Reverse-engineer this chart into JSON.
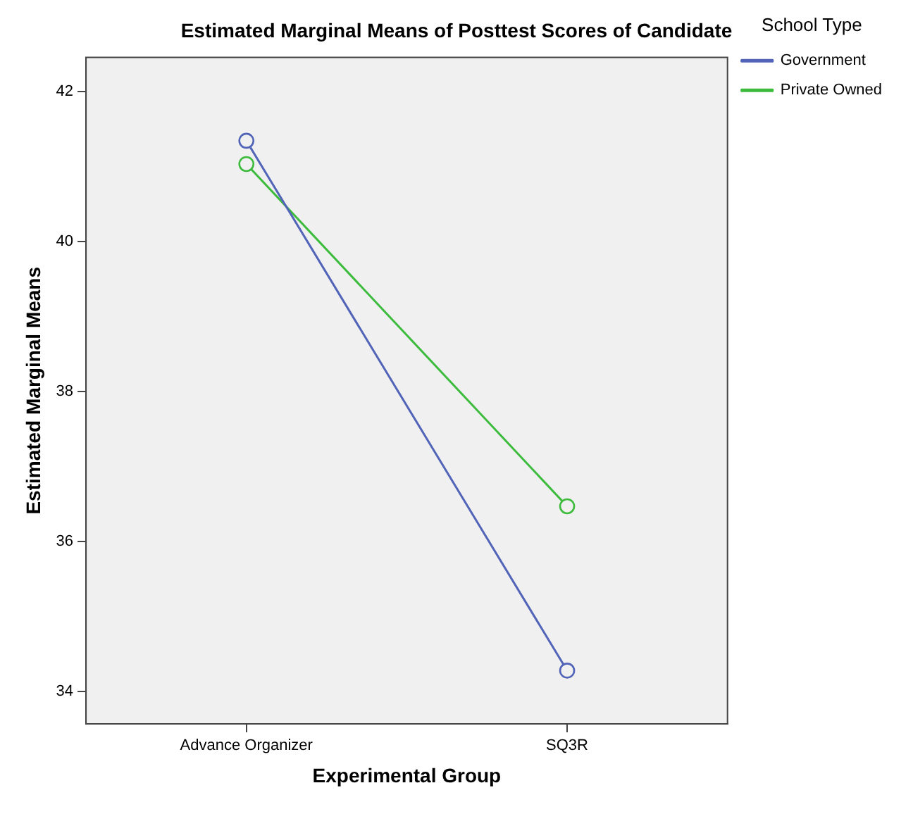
{
  "chart_data": {
    "type": "line",
    "title": "Estimated Marginal Means of Posttest Scores of Candidate",
    "xlabel": "Experimental Group",
    "ylabel": "Estimated Marginal Means",
    "legend_title": "School Type",
    "categories": [
      "Advance Organizer",
      "SQ3R"
    ],
    "series": [
      {
        "name": "Government",
        "color": "#5264b8",
        "values": [
          41.34,
          34.28
        ]
      },
      {
        "name": "Private Owned",
        "color": "#3cbb3c",
        "values": [
          41.03,
          36.47
        ]
      }
    ],
    "ylim": [
      33.57,
      42.45
    ],
    "yticks": [
      34,
      36,
      38,
      40,
      42
    ],
    "grid": false,
    "legend": "top right",
    "marker": "circle",
    "line_style": "solid"
  }
}
